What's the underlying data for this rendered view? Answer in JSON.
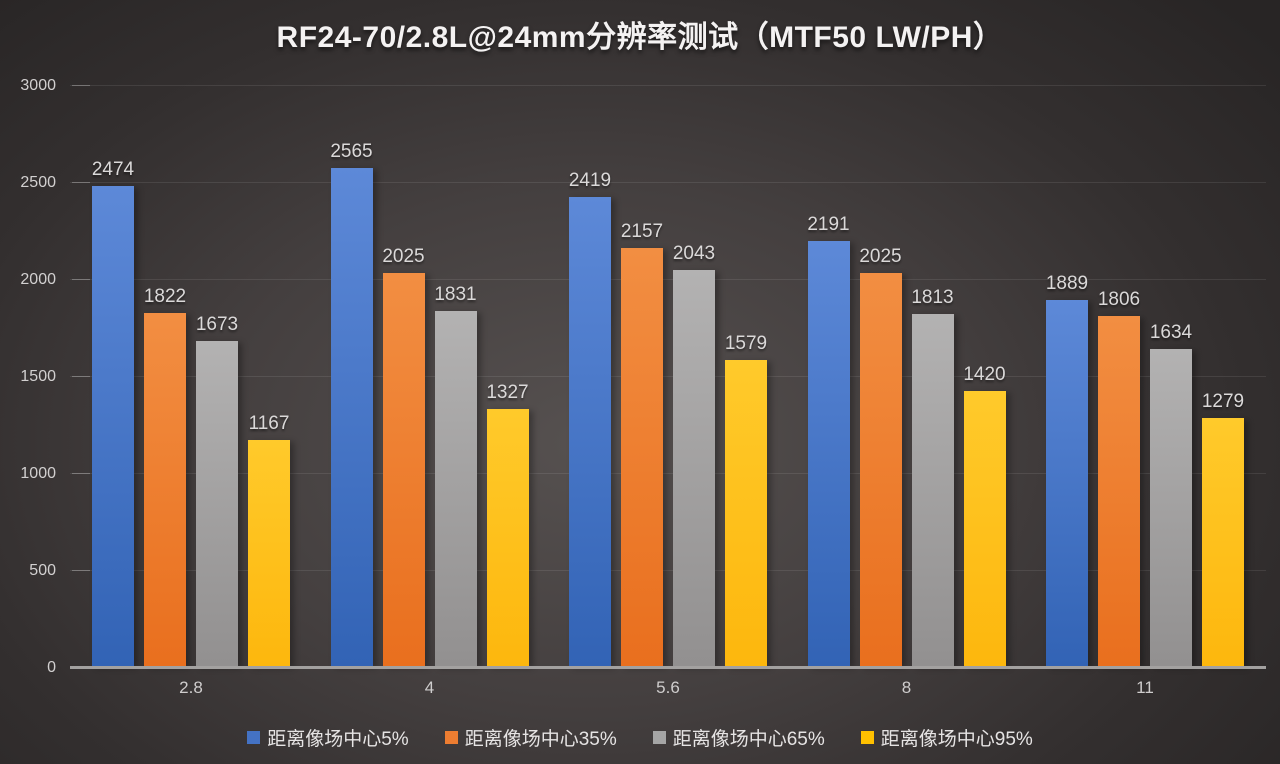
{
  "chart_data": {
    "type": "bar",
    "title": "RF24-70/2.8L@24mm分辨率测试（MTF50 LW/PH）",
    "categories": [
      "2.8",
      "4",
      "5.6",
      "8",
      "11"
    ],
    "series": [
      {
        "name": "距离像场中心5%",
        "color": "#4472C4",
        "color_top": "#5d89d8",
        "color_bottom": "#3263b5",
        "values": [
          2474,
          2565,
          2419,
          2191,
          1889
        ]
      },
      {
        "name": "距离像场中心35%",
        "color": "#ED7D31",
        "color_top": "#f28e42",
        "color_bottom": "#e96f1e",
        "values": [
          1822,
          2025,
          2157,
          2025,
          1806
        ]
      },
      {
        "name": "距离像场中心65%",
        "color": "#A5A5A5",
        "color_top": "#b3b2b2",
        "color_bottom": "#929090",
        "values": [
          1673,
          1831,
          2043,
          1813,
          1634
        ]
      },
      {
        "name": "距离像场中心95%",
        "color": "#FFC000",
        "color_top": "#ffca2b",
        "color_bottom": "#fdb70d",
        "values": [
          1167,
          1327,
          1579,
          1420,
          1279
        ]
      }
    ],
    "ylabel": "",
    "xlabel": "",
    "ylim": [
      0,
      3000
    ],
    "yticks": [
      0,
      500,
      1000,
      1500,
      2000,
      2500,
      3000
    ],
    "grid": true,
    "legend_position": "bottom",
    "background": "dark-gradient"
  }
}
